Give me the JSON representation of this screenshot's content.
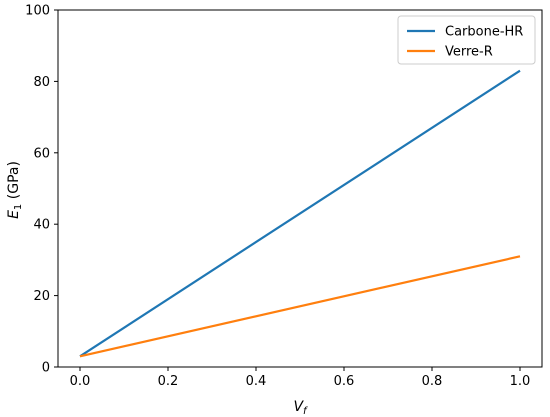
{
  "chart_data": {
    "type": "line",
    "x_label_main": "V",
    "x_label_sub": "f",
    "y_label_main": "E",
    "y_label_sub": "1",
    "y_label_unit": " (GPa)",
    "xlim": [
      -0.05,
      1.05
    ],
    "ylim": [
      0,
      100
    ],
    "x_ticks": [
      0.0,
      0.2,
      0.4,
      0.6,
      0.8,
      1.0
    ],
    "x_tick_labels": [
      "0.0",
      "0.2",
      "0.4",
      "0.6",
      "0.8",
      "1.0"
    ],
    "y_ticks": [
      0,
      20,
      40,
      60,
      80,
      100
    ],
    "y_tick_labels": [
      "0",
      "20",
      "40",
      "60",
      "80",
      "100"
    ],
    "grid": false,
    "legend_position": "top-right",
    "series": [
      {
        "name": "Carbone-HR",
        "color": "#1f77b4",
        "x": [
          0.0,
          1.0
        ],
        "y": [
          3,
          83
        ]
      },
      {
        "name": "Verre-R",
        "color": "#ff7f0e",
        "x": [
          0.0,
          1.0
        ],
        "y": [
          3,
          31
        ]
      }
    ]
  }
}
